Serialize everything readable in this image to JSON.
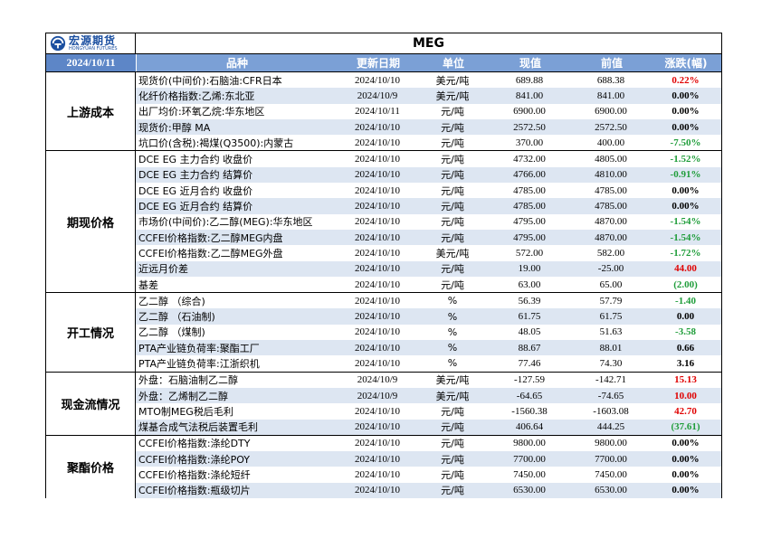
{
  "logo": {
    "cn": "宏源期货",
    "en": "HONGYUAN FUTURES"
  },
  "title": "MEG",
  "header": {
    "date": "2024/10/11",
    "name": "品种",
    "update": "更新日期",
    "unit": "单位",
    "current": "现值",
    "previous": "前值",
    "change": "涨跌(幅)"
  },
  "sections": [
    {
      "label": "上游成本",
      "rows": [
        {
          "name": "现货价(中间价):石脑油:CFR日本",
          "date": "2024/10/10",
          "unit": "美元/吨",
          "cur": "689.88",
          "prev": "688.38",
          "chg": "0.22%",
          "dir": "pos"
        },
        {
          "name": "化纤价格指数:乙烯:东北亚",
          "date": "2024/10/9",
          "unit": "美元/吨",
          "cur": "841.00",
          "prev": "841.00",
          "chg": "0.00%",
          "dir": "zero"
        },
        {
          "name": "出厂均价:环氧乙烷:华东地区",
          "date": "2024/10/11",
          "unit": "元/吨",
          "cur": "6900.00",
          "prev": "6900.00",
          "chg": "0.00%",
          "dir": "zero"
        },
        {
          "name": "现货价:甲醇 MA",
          "date": "2024/10/10",
          "unit": "元/吨",
          "cur": "2572.50",
          "prev": "2572.50",
          "chg": "0.00%",
          "dir": "zero"
        },
        {
          "name": "坑口价(含税):褐煤(Q3500):内蒙古",
          "date": "2024/10/10",
          "unit": "元/吨",
          "cur": "370.00",
          "prev": "400.00",
          "chg": "-7.50%",
          "dir": "neg"
        }
      ]
    },
    {
      "label": "期现价格",
      "rows": [
        {
          "name": "DCE EG 主力合约 收盘价",
          "date": "2024/10/10",
          "unit": "元/吨",
          "cur": "4732.00",
          "prev": "4805.00",
          "chg": "-1.52%",
          "dir": "neg"
        },
        {
          "name": "DCE EG 主力合约 结算价",
          "date": "2024/10/10",
          "unit": "元/吨",
          "cur": "4766.00",
          "prev": "4810.00",
          "chg": "-0.91%",
          "dir": "neg"
        },
        {
          "name": "DCE EG 近月合约 收盘价",
          "date": "2024/10/10",
          "unit": "元/吨",
          "cur": "4785.00",
          "prev": "4785.00",
          "chg": "0.00%",
          "dir": "zero"
        },
        {
          "name": "DCE EG 近月合约 结算价",
          "date": "2024/10/10",
          "unit": "元/吨",
          "cur": "4785.00",
          "prev": "4785.00",
          "chg": "0.00%",
          "dir": "zero"
        },
        {
          "name": "市场价(中间价):乙二醇(MEG):华东地区",
          "date": "2024/10/10",
          "unit": "元/吨",
          "cur": "4795.00",
          "prev": "4870.00",
          "chg": "-1.54%",
          "dir": "neg"
        },
        {
          "name": "CCFEI价格指数:乙二醇MEG内盘",
          "date": "2024/10/10",
          "unit": "元/吨",
          "cur": "4795.00",
          "prev": "4870.00",
          "chg": "-1.54%",
          "dir": "neg"
        },
        {
          "name": "CCFEI价格指数:乙二醇MEG外盘",
          "date": "2024/10/10",
          "unit": "美元/吨",
          "cur": "572.00",
          "prev": "582.00",
          "chg": "-1.72%",
          "dir": "neg"
        },
        {
          "name": "近远月价差",
          "date": "2024/10/10",
          "unit": "元/吨",
          "cur": "19.00",
          "prev": "-25.00",
          "chg": "44.00",
          "dir": "pos"
        },
        {
          "name": "基差",
          "date": "2024/10/10",
          "unit": "元/吨",
          "cur": "63.00",
          "prev": "65.00",
          "chg": "(2.00)",
          "dir": "neg"
        }
      ]
    },
    {
      "label": "开工情况",
      "rows": [
        {
          "name": "乙二醇 （综合)",
          "date": "2024/10/10",
          "unit": "%",
          "cur": "56.39",
          "prev": "57.79",
          "chg": "-1.40",
          "dir": "neg"
        },
        {
          "name": "乙二醇 （石油制)",
          "date": "2024/10/10",
          "unit": "%",
          "cur": "61.75",
          "prev": "61.75",
          "chg": "0.00",
          "dir": "zero"
        },
        {
          "name": "乙二醇 （煤制)",
          "date": "2024/10/10",
          "unit": "%",
          "cur": "48.05",
          "prev": "51.63",
          "chg": "-3.58",
          "dir": "neg"
        },
        {
          "name": "PTA产业链负荷率:聚酯工厂",
          "date": "2024/10/10",
          "unit": "%",
          "cur": "88.67",
          "prev": "88.01",
          "chg": "0.66",
          "dir": "zero"
        },
        {
          "name": "PTA产业链负荷率:江浙织机",
          "date": "2024/10/10",
          "unit": "%",
          "cur": "77.46",
          "prev": "74.30",
          "chg": "3.16",
          "dir": "zero"
        }
      ]
    },
    {
      "label": "现金流情况",
      "rows": [
        {
          "name": "外盘：石脑油制乙二醇",
          "date": "2024/10/9",
          "unit": "美元/吨",
          "cur": "-127.59",
          "prev": "-142.71",
          "chg": "15.13",
          "dir": "pos"
        },
        {
          "name": "外盘：乙烯制乙二醇",
          "date": "2024/10/9",
          "unit": "美元/吨",
          "cur": "-64.65",
          "prev": "-74.65",
          "chg": "10.00",
          "dir": "pos"
        },
        {
          "name": "MTO制MEG税后毛利",
          "date": "2024/10/10",
          "unit": "元/吨",
          "cur": "-1560.38",
          "prev": "-1603.08",
          "chg": "42.70",
          "dir": "pos"
        },
        {
          "name": "煤基合成气法税后装置毛利",
          "date": "2024/10/10",
          "unit": "元/吨",
          "cur": "406.64",
          "prev": "444.25",
          "chg": "(37.61)",
          "dir": "neg"
        }
      ]
    },
    {
      "label": "聚酯价格",
      "rows": [
        {
          "name": "CCFEI价格指数:涤纶DTY",
          "date": "2024/10/10",
          "unit": "元/吨",
          "cur": "9800.00",
          "prev": "9800.00",
          "chg": "0.00%",
          "dir": "zero"
        },
        {
          "name": "CCFEI价格指数:涤纶POY",
          "date": "2024/10/10",
          "unit": "元/吨",
          "cur": "7700.00",
          "prev": "7700.00",
          "chg": "0.00%",
          "dir": "zero"
        },
        {
          "name": "CCFEI价格指数:涤纶短纤",
          "date": "2024/10/10",
          "unit": "元/吨",
          "cur": "7450.00",
          "prev": "7450.00",
          "chg": "0.00%",
          "dir": "zero"
        },
        {
          "name": "CCFEI价格指数:瓶级切片",
          "date": "2024/10/10",
          "unit": "元/吨",
          "cur": "6530.00",
          "prev": "6530.00",
          "chg": "0.00%",
          "dir": "zero"
        }
      ]
    }
  ]
}
